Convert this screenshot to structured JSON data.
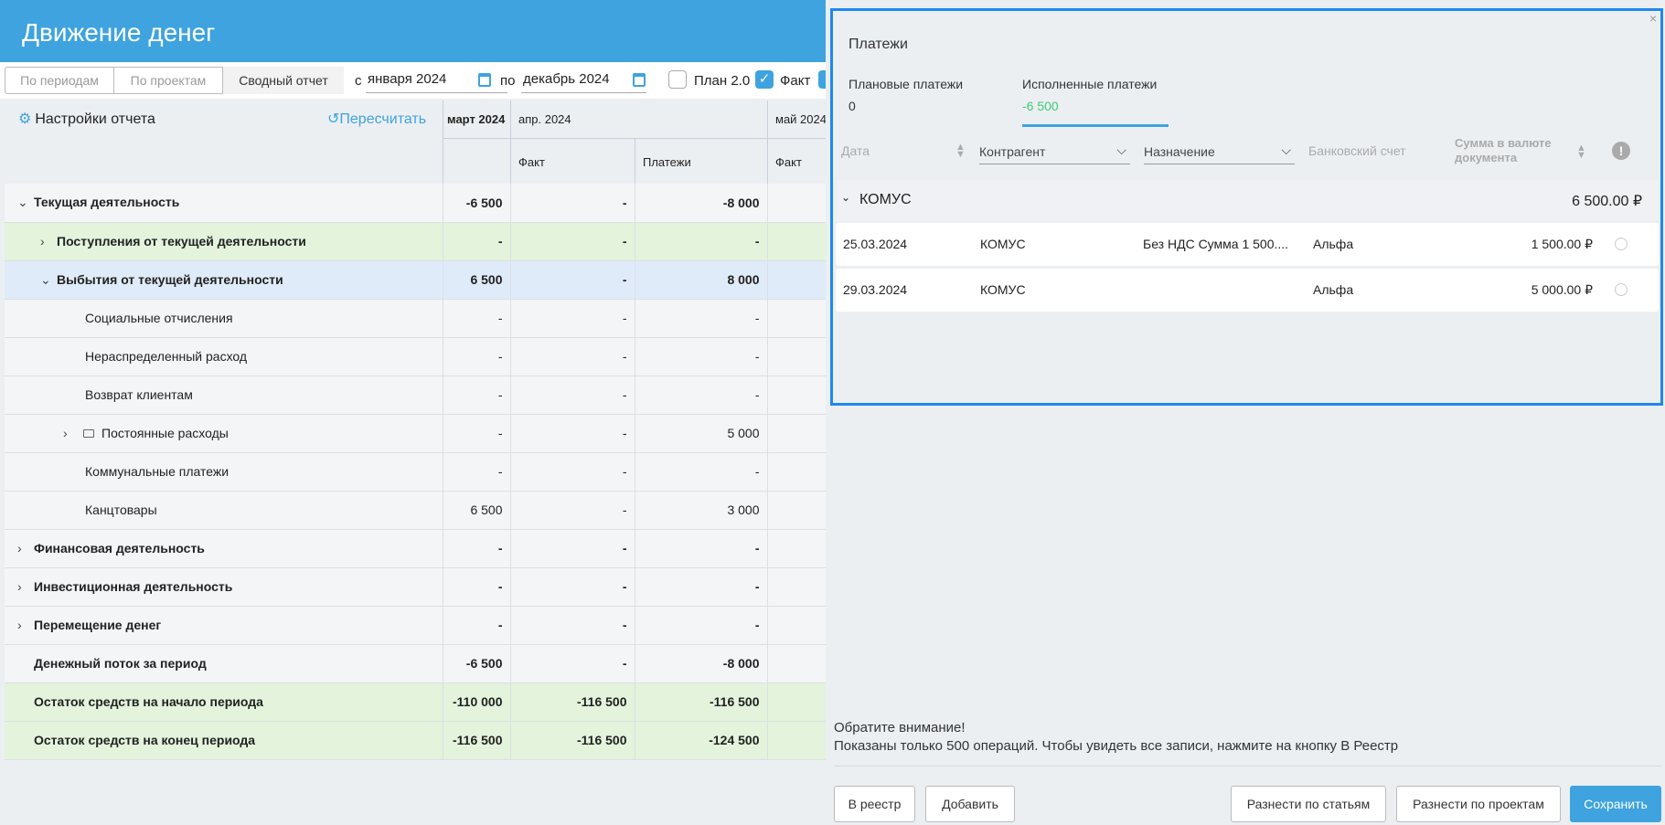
{
  "header": {
    "title": "Движение денег"
  },
  "toolbar": {
    "tab_periods": "По периодам",
    "tab_projects": "По проектам",
    "tab_summary": "Сводный отчет",
    "from_label": "с",
    "from_value": "января 2024",
    "to_label": "по",
    "to_value": "декабрь 2024",
    "plan_label": "План 2.0",
    "plan_checked": false,
    "fact_label": "Факт",
    "fact_checked": true
  },
  "report": {
    "settings_label": "Настройки отчета",
    "recalc_label": "Пересчитать",
    "months": [
      "март 2024",
      "апр. 2024",
      "май 2024"
    ],
    "subheaders": [
      "Факт",
      "Платежи",
      "Факт"
    ],
    "rows": [
      {
        "label": "Текущая деятельность",
        "level": 0,
        "chevron": "down",
        "style": "bold",
        "values": [
          "-6 500",
          "-",
          "-8 000"
        ]
      },
      {
        "label": "Поступления от текущей деятельности",
        "level": 1,
        "chevron": "right",
        "style": "bold green",
        "values": [
          "-",
          "-",
          "-"
        ]
      },
      {
        "label": "Выбытия от текущей деятельности",
        "level": 1,
        "chevron": "down",
        "style": "bold blue",
        "values": [
          "6 500",
          "-",
          "8 000"
        ]
      },
      {
        "label": "Социальные отчисления",
        "level": 2,
        "chevron": "",
        "style": "",
        "values": [
          "-",
          "-",
          "-"
        ]
      },
      {
        "label": "Нераспределенный расход",
        "level": 2,
        "chevron": "",
        "style": "",
        "values": [
          "-",
          "-",
          "-"
        ]
      },
      {
        "label": "Возврат клиентам",
        "level": 2,
        "chevron": "",
        "style": "",
        "values": [
          "-",
          "-",
          "-"
        ]
      },
      {
        "label": "Постоянные расходы",
        "level": 2,
        "chevron": "right",
        "folder": true,
        "style": "",
        "values": [
          "-",
          "-",
          "5 000"
        ]
      },
      {
        "label": "Коммунальные платежи",
        "level": 2,
        "chevron": "",
        "style": "",
        "values": [
          "-",
          "-",
          "-"
        ]
      },
      {
        "label": "Канцтовары",
        "level": 2,
        "chevron": "",
        "style": "",
        "values": [
          "6 500",
          "-",
          "3 000"
        ]
      },
      {
        "label": "Финансовая деятельность",
        "level": 0,
        "chevron": "right",
        "style": "bold",
        "values": [
          "-",
          "-",
          "-"
        ]
      },
      {
        "label": "Инвестиционная деятельность",
        "level": 0,
        "chevron": "right",
        "style": "bold",
        "values": [
          "-",
          "-",
          "-"
        ]
      },
      {
        "label": "Перемещение денег",
        "level": 0,
        "chevron": "right",
        "style": "bold",
        "values": [
          "-",
          "-",
          "-"
        ]
      },
      {
        "label": "Денежный поток за период",
        "level": 0,
        "chevron": "",
        "style": "bold",
        "values": [
          "-6 500",
          "-",
          "-8 000"
        ]
      },
      {
        "label": "Остаток средств на начало периода",
        "level": 0,
        "chevron": "",
        "style": "bold green",
        "values": [
          "-110 000",
          "-116 500",
          "-116 500"
        ]
      },
      {
        "label": "Остаток средств на конец периода",
        "level": 0,
        "chevron": "",
        "style": "bold green",
        "values": [
          "-116 500",
          "-116 500",
          "-124 500"
        ]
      }
    ]
  },
  "panel": {
    "title": "Платежи",
    "close": "×",
    "tabs": [
      {
        "label": "Плановые платежи",
        "value": "0"
      },
      {
        "label": "Исполненные платежи",
        "value": "-6 500"
      }
    ],
    "columns": {
      "date": "Дата",
      "counterparty": "Контрагент",
      "purpose": "Назначение",
      "account": "Банковский счет",
      "amount": "Сумма в валюте документа"
    },
    "group": {
      "name": "КОМУС",
      "total": "6 500.00 ₽"
    },
    "rows": [
      {
        "date": "25.03.2024",
        "counterparty": "КОМУС",
        "purpose": "Без НДС Сумма 1 500....",
        "account": "Альфа",
        "amount": "1 500.00 ₽"
      },
      {
        "date": "29.03.2024",
        "counterparty": "КОМУС",
        "purpose": "",
        "account": "Альфа",
        "amount": "5 000.00 ₽"
      }
    ],
    "notice_title": "Обратите внимание!",
    "notice_text": "Показаны только 500 операций. Чтобы увидеть все записи, нажмите на кнопку В Реестр",
    "buttons": {
      "registry": "В реестр",
      "add": "Добавить",
      "by_items": "Разнести по статьям",
      "by_projects": "Разнести по проектам",
      "save": "Сохранить"
    }
  },
  "colors": {
    "accent": "#3ea3de",
    "focus_border": "#1e88f0",
    "positive": "#3ccb73"
  }
}
